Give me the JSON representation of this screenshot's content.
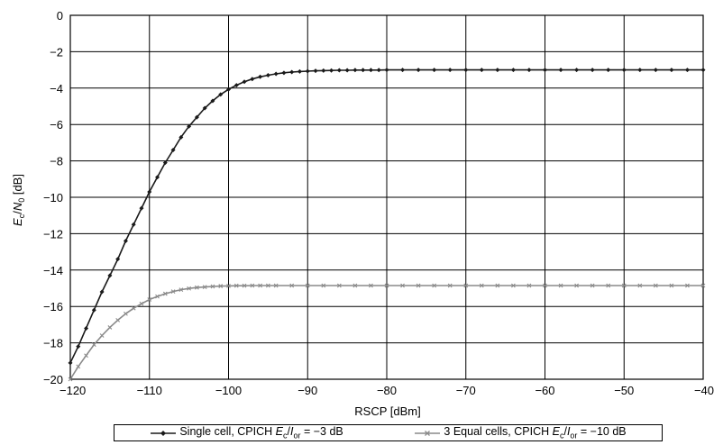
{
  "chart_data": {
    "type": "line",
    "title": "",
    "xlabel": "RSCP [dBm]",
    "ylabel_parts": {
      "e": "E",
      "e_sub": "c",
      "slash": "/",
      "n": "N",
      "n_sub": "0",
      "unit": " [dB]"
    },
    "xlim": [
      -120,
      -40
    ],
    "ylim": [
      -20,
      0
    ],
    "xticks": [
      -120,
      -110,
      -100,
      -90,
      -80,
      -70,
      -60,
      -50,
      -40
    ],
    "yticks": [
      0,
      -2,
      -4,
      -6,
      -8,
      -10,
      -12,
      -14,
      -16,
      -18,
      -20
    ],
    "grid": true,
    "legend_position": "bottom",
    "series": [
      {
        "name": "Single cell, CPICH Ec/Ior = −3 dB",
        "legend": {
          "pre": "Single cell, CPICH ",
          "e": "E",
          "e_sub": "c",
          "slash": "/",
          "i": "I",
          "i_sub": "or",
          "post": " = −3 dB"
        },
        "color": "#1a1a1a",
        "marker": "diamond",
        "x": [
          -120,
          -119,
          -118,
          -117,
          -116,
          -115,
          -114,
          -113,
          -112,
          -111,
          -110,
          -109,
          -108,
          -107,
          -106,
          -105,
          -104,
          -103,
          -102,
          -101,
          -100,
          -99,
          -98,
          -97,
          -96,
          -95,
          -94,
          -93,
          -92,
          -91,
          -90,
          -89,
          -88,
          -87,
          -86,
          -85,
          -84,
          -83,
          -82,
          -81,
          -80,
          -78,
          -76,
          -74,
          -72,
          -70,
          -68,
          -66,
          -64,
          -62,
          -60,
          -58,
          -56,
          -54,
          -52,
          -50,
          -48,
          -46,
          -44,
          -42,
          -40
        ],
        "y": [
          -19.1,
          -18.2,
          -17.2,
          -16.2,
          -15.2,
          -14.3,
          -13.4,
          -12.4,
          -11.5,
          -10.6,
          -9.7,
          -8.9,
          -8.1,
          -7.4,
          -6.7,
          -6.1,
          -5.6,
          -5.1,
          -4.7,
          -4.35,
          -4.07,
          -3.84,
          -3.65,
          -3.5,
          -3.38,
          -3.29,
          -3.22,
          -3.16,
          -3.12,
          -3.09,
          -3.07,
          -3.05,
          -3.04,
          -3.03,
          -3.02,
          -3.02,
          -3.01,
          -3.01,
          -3.01,
          -3.01,
          -3.0,
          -3.0,
          -3.0,
          -3.0,
          -3.0,
          -3.0,
          -3.0,
          -3.0,
          -3.0,
          -3.0,
          -3.0,
          -3.0,
          -3.0,
          -3.0,
          -3.0,
          -3.0,
          -3.0,
          -3.0,
          -3.0,
          -3.0,
          -3.0
        ]
      },
      {
        "name": "3 Equal cells, CPICH Ec/Ior = −10 dB",
        "legend": {
          "pre": "3 Equal cells, CPICH ",
          "e": "E",
          "e_sub": "c",
          "slash": "/",
          "i": "I",
          "i_sub": "or",
          "post": " = −10 dB"
        },
        "color": "#8a8a8a",
        "marker": "cross",
        "x": [
          -120,
          -119,
          -118,
          -117,
          -116,
          -115,
          -114,
          -113,
          -112,
          -111,
          -110,
          -109,
          -108,
          -107,
          -106,
          -105,
          -104,
          -103,
          -102,
          -101,
          -100,
          -99,
          -98,
          -97,
          -96,
          -95,
          -94,
          -92,
          -90,
          -88,
          -86,
          -84,
          -82,
          -80,
          -78,
          -76,
          -74,
          -72,
          -70,
          -68,
          -66,
          -64,
          -62,
          -60,
          -58,
          -56,
          -54,
          -52,
          -50,
          -48,
          -46,
          -44,
          -42,
          -40
        ],
        "y": [
          -20.0,
          -19.3,
          -18.7,
          -18.1,
          -17.6,
          -17.15,
          -16.75,
          -16.4,
          -16.1,
          -15.85,
          -15.62,
          -15.45,
          -15.3,
          -15.18,
          -15.08,
          -15.01,
          -14.96,
          -14.93,
          -14.9,
          -14.88,
          -14.87,
          -14.86,
          -14.86,
          -14.85,
          -14.85,
          -14.85,
          -14.85,
          -14.85,
          -14.85,
          -14.85,
          -14.85,
          -14.85,
          -14.85,
          -14.85,
          -14.85,
          -14.85,
          -14.85,
          -14.85,
          -14.85,
          -14.85,
          -14.85,
          -14.85,
          -14.85,
          -14.85,
          -14.85,
          -14.85,
          -14.85,
          -14.85,
          -14.85,
          -14.85,
          -14.85,
          -14.85,
          -14.85,
          -14.85
        ]
      }
    ]
  }
}
